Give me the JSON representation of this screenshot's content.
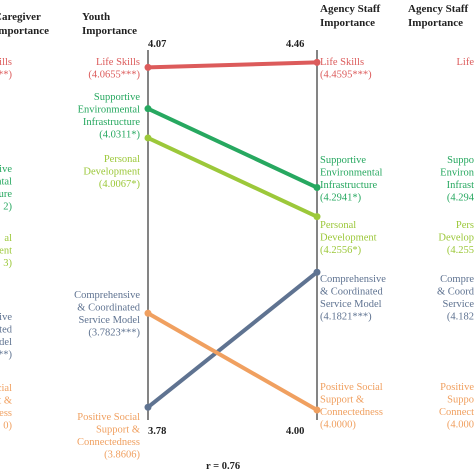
{
  "chart_data": {
    "type": "line",
    "headers": {
      "caregiver": [
        "Caregiver",
        "Importance"
      ],
      "youth": [
        "Youth",
        "Importance"
      ],
      "agency_mid": [
        "Agency Staff",
        "Importance"
      ],
      "agency_right": [
        "Agency Staff",
        "Importance"
      ]
    },
    "left_axis": {
      "top": "4.07",
      "bottom": "3.78",
      "range": [
        3.78,
        4.07
      ]
    },
    "right_axis": {
      "top": "4.46",
      "bottom": "4.00",
      "range": [
        4.0,
        4.46
      ]
    },
    "correlation": "r = 0.76",
    "series": [
      {
        "name": "Life Skills",
        "color": "#dc5b5b",
        "youth": 4.0655,
        "agency": 4.4595,
        "youth_lines": [
          "Life Skills",
          "(4.0655***)"
        ],
        "agency_lines": [
          "Life Skills",
          "(4.4595***)"
        ],
        "caregiver_lines": [
          "Skills",
          "5**)"
        ],
        "agency_right_lines": [
          "Life"
        ]
      },
      {
        "name": "Supportive Environmental Infrastructure",
        "color": "#27a860",
        "youth": 4.0311,
        "agency": 4.2941,
        "youth_lines": [
          "Supportive",
          "Environmental",
          "Infrastructure",
          "(4.0311*)"
        ],
        "agency_lines": [
          "Supportive",
          "Environmental",
          "Infrastructure",
          "(4.2941*)"
        ],
        "caregiver_lines": [
          "ortive",
          "nmental",
          "ructure",
          "2)"
        ],
        "agency_right_lines": [
          "Suppo",
          "Environ",
          "Infrast",
          "(4.294"
        ]
      },
      {
        "name": "Personal Development",
        "color": "#9cc83a",
        "youth": 4.0067,
        "agency": 4.2556,
        "youth_lines": [
          "Personal",
          "Development",
          "(4.0067*)"
        ],
        "agency_lines": [
          "Personal",
          "Development",
          "(4.2556*)"
        ],
        "caregiver_lines": [
          "al",
          "opment",
          "3)"
        ],
        "agency_right_lines": [
          "Pers",
          "Develop",
          "(4.255"
        ]
      },
      {
        "name": "Comprehensive & Coordinated Service Model",
        "color": "#5f7391",
        "youth": 3.7823,
        "agency": 4.1821,
        "youth_lines": [
          "Comprehensive",
          "& Coordinated",
          "Service Model",
          "(3.7823***)"
        ],
        "agency_lines": [
          "Comprehensive",
          "& Coordinated",
          "Service Model",
          "(4.1821***)"
        ],
        "caregiver_lines": [
          "ehensive",
          "ordinated",
          "e Model",
          "3***)"
        ],
        "agency_right_lines": [
          "Compre",
          "& Coord",
          "Service",
          "(4.182"
        ]
      },
      {
        "name": "Positive Social Support & Connectedness",
        "color": "#f0a060",
        "youth": 3.8606,
        "agency": 4.0,
        "youth_lines": [
          "Positive Social",
          "Support &",
          "Connectedness",
          "(3.8606)"
        ],
        "agency_lines": [
          "Positive Social",
          "Support &",
          "Connectedness",
          "(4.0000)"
        ],
        "caregiver_lines": [
          "e Social",
          "rt &",
          "ctedness",
          "0)"
        ],
        "agency_right_lines": [
          "Positive",
          "Suppo",
          "Connect",
          "(4.000"
        ]
      }
    ]
  }
}
